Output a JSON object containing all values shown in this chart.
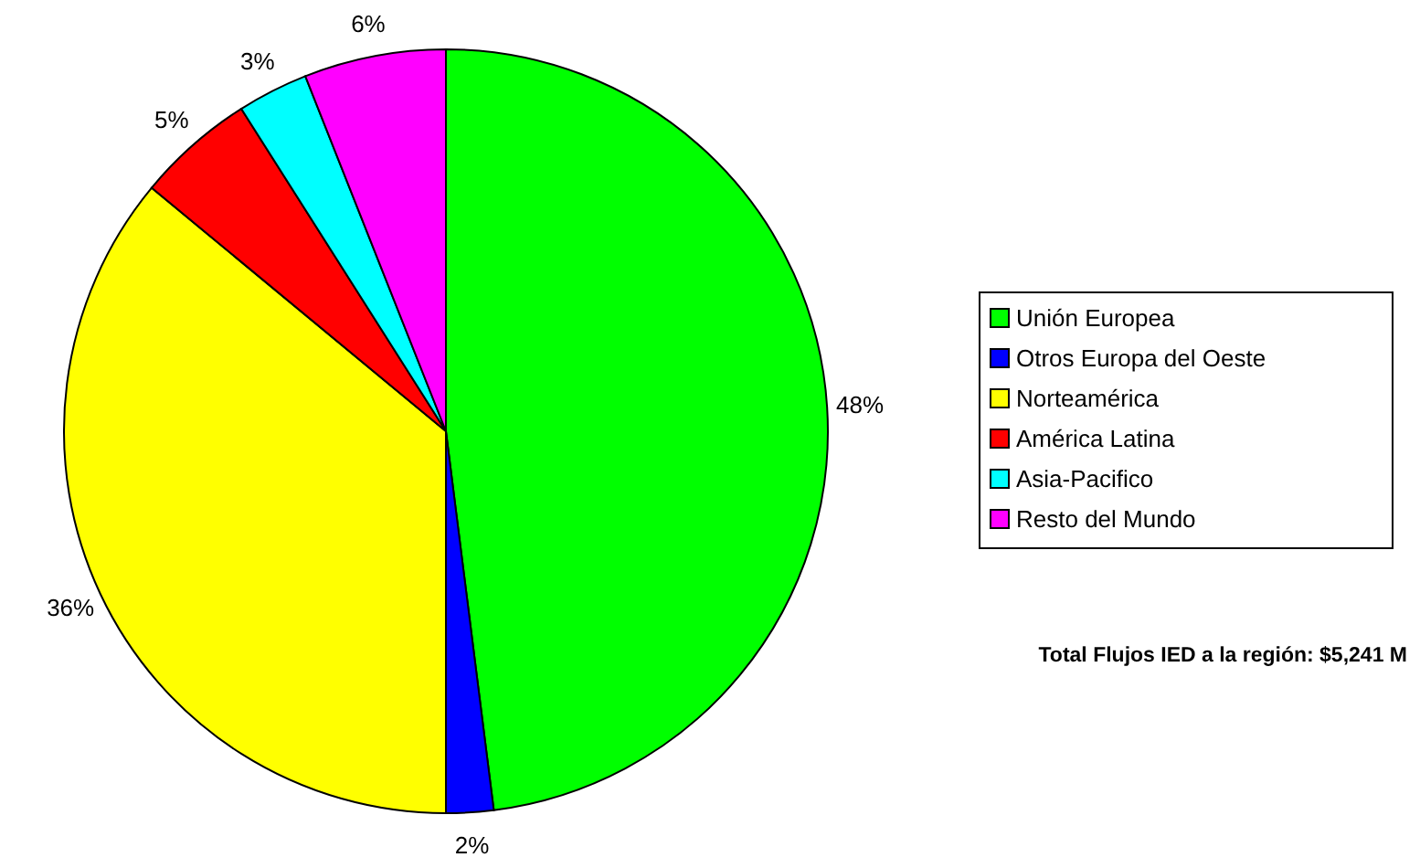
{
  "chart_data": {
    "type": "pie",
    "categories": [
      "Unión Europea",
      "Otros Europa del Oeste",
      "Norteamérica",
      "América Latina",
      "Asia-Pacifico",
      "Resto del Mundo"
    ],
    "values": [
      48,
      2,
      36,
      5,
      3,
      6
    ],
    "colors": [
      "#00ff00",
      "#0000ff",
      "#ffff00",
      "#ff0000",
      "#00ffff",
      "#ff00ff"
    ],
    "value_labels": [
      "48%",
      "2%",
      "36%",
      "5%",
      "3%",
      "6%"
    ],
    "legend": "right",
    "annotations": [
      "Total Flujos IED a la región: $5,241 M"
    ]
  }
}
